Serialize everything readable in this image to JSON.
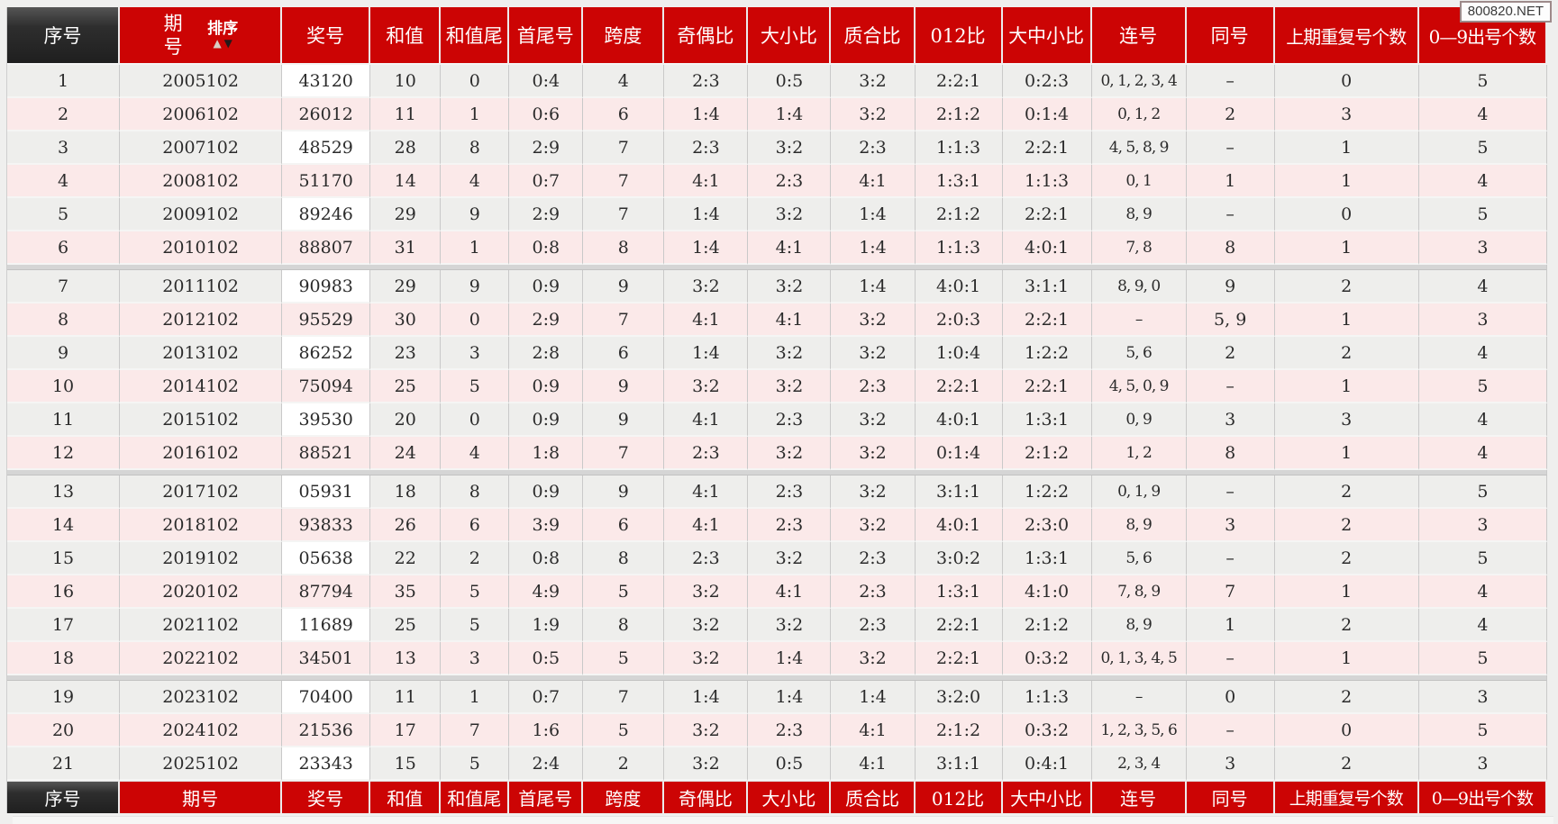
{
  "watermark": "800820.NET",
  "table": {
    "columns": [
      {
        "key": "index",
        "label": "序号"
      },
      {
        "key": "period",
        "label": "期号"
      },
      {
        "key": "number",
        "label": "奖号"
      },
      {
        "key": "sum",
        "label": "和值"
      },
      {
        "key": "sum-tail",
        "label": "和值尾"
      },
      {
        "key": "first-last",
        "label": "首尾号"
      },
      {
        "key": "span",
        "label": "跨度"
      },
      {
        "key": "odd-even",
        "label": "奇偶比"
      },
      {
        "key": "big-small",
        "label": "大小比"
      },
      {
        "key": "prime-composite",
        "label": "质合比"
      },
      {
        "key": "zero-one-two",
        "label": "012比"
      },
      {
        "key": "big-mid-small",
        "label": "大中小比"
      },
      {
        "key": "consecutive",
        "label": "连号"
      },
      {
        "key": "same",
        "label": "同号"
      },
      {
        "key": "repeat-prev",
        "label": "上期重复号个数"
      },
      {
        "key": "digit-count",
        "label": "0—9出号个数"
      }
    ],
    "sort": {
      "label": "排序",
      "up_icon": "▲",
      "down_icon": "▼"
    },
    "group_breaks": [
      6,
      12,
      18
    ],
    "rows": [
      [
        "1",
        "2005102",
        "43120",
        "10",
        "0",
        "0:4",
        "4",
        "2:3",
        "0:5",
        "3:2",
        "2:2:1",
        "0:2:3",
        "0, 1, 2, 3, 4",
        "–",
        "0",
        "5"
      ],
      [
        "2",
        "2006102",
        "26012",
        "11",
        "1",
        "0:6",
        "6",
        "1:4",
        "1:4",
        "3:2",
        "2:1:2",
        "0:1:4",
        "0, 1, 2",
        "2",
        "3",
        "4"
      ],
      [
        "3",
        "2007102",
        "48529",
        "28",
        "8",
        "2:9",
        "7",
        "2:3",
        "3:2",
        "2:3",
        "1:1:3",
        "2:2:1",
        "4, 5, 8, 9",
        "–",
        "1",
        "5"
      ],
      [
        "4",
        "2008102",
        "51170",
        "14",
        "4",
        "0:7",
        "7",
        "4:1",
        "2:3",
        "4:1",
        "1:3:1",
        "1:1:3",
        "0, 1",
        "1",
        "1",
        "4"
      ],
      [
        "5",
        "2009102",
        "89246",
        "29",
        "9",
        "2:9",
        "7",
        "1:4",
        "3:2",
        "1:4",
        "2:1:2",
        "2:2:1",
        "8, 9",
        "–",
        "0",
        "5"
      ],
      [
        "6",
        "2010102",
        "88807",
        "31",
        "1",
        "0:8",
        "8",
        "1:4",
        "4:1",
        "1:4",
        "1:1:3",
        "4:0:1",
        "7, 8",
        "8",
        "1",
        "3"
      ],
      [
        "7",
        "2011102",
        "90983",
        "29",
        "9",
        "0:9",
        "9",
        "3:2",
        "3:2",
        "1:4",
        "4:0:1",
        "3:1:1",
        "8, 9, 0",
        "9",
        "2",
        "4"
      ],
      [
        "8",
        "2012102",
        "95529",
        "30",
        "0",
        "2:9",
        "7",
        "4:1",
        "4:1",
        "3:2",
        "2:0:3",
        "2:2:1",
        "–",
        "5, 9",
        "1",
        "3"
      ],
      [
        "9",
        "2013102",
        "86252",
        "23",
        "3",
        "2:8",
        "6",
        "1:4",
        "3:2",
        "3:2",
        "1:0:4",
        "1:2:2",
        "5, 6",
        "2",
        "2",
        "4"
      ],
      [
        "10",
        "2014102",
        "75094",
        "25",
        "5",
        "0:9",
        "9",
        "3:2",
        "3:2",
        "2:3",
        "2:2:1",
        "2:2:1",
        "4, 5, 0, 9",
        "–",
        "1",
        "5"
      ],
      [
        "11",
        "2015102",
        "39530",
        "20",
        "0",
        "0:9",
        "9",
        "4:1",
        "2:3",
        "3:2",
        "4:0:1",
        "1:3:1",
        "0, 9",
        "3",
        "3",
        "4"
      ],
      [
        "12",
        "2016102",
        "88521",
        "24",
        "4",
        "1:8",
        "7",
        "2:3",
        "3:2",
        "3:2",
        "0:1:4",
        "2:1:2",
        "1, 2",
        "8",
        "1",
        "4"
      ],
      [
        "13",
        "2017102",
        "05931",
        "18",
        "8",
        "0:9",
        "9",
        "4:1",
        "2:3",
        "3:2",
        "3:1:1",
        "1:2:2",
        "0, 1, 9",
        "–",
        "2",
        "5"
      ],
      [
        "14",
        "2018102",
        "93833",
        "26",
        "6",
        "3:9",
        "6",
        "4:1",
        "2:3",
        "3:2",
        "4:0:1",
        "2:3:0",
        "8, 9",
        "3",
        "2",
        "3"
      ],
      [
        "15",
        "2019102",
        "05638",
        "22",
        "2",
        "0:8",
        "8",
        "2:3",
        "3:2",
        "2:3",
        "3:0:2",
        "1:3:1",
        "5, 6",
        "–",
        "2",
        "5"
      ],
      [
        "16",
        "2020102",
        "87794",
        "35",
        "5",
        "4:9",
        "5",
        "3:2",
        "4:1",
        "2:3",
        "1:3:1",
        "4:1:0",
        "7, 8, 9",
        "7",
        "1",
        "4"
      ],
      [
        "17",
        "2021102",
        "11689",
        "25",
        "5",
        "1:9",
        "8",
        "3:2",
        "3:2",
        "2:3",
        "2:2:1",
        "2:1:2",
        "8, 9",
        "1",
        "2",
        "4"
      ],
      [
        "18",
        "2022102",
        "34501",
        "13",
        "3",
        "0:5",
        "5",
        "3:2",
        "1:4",
        "3:2",
        "2:2:1",
        "0:3:2",
        "0, 1, 3, 4, 5",
        "–",
        "1",
        "5"
      ],
      [
        "19",
        "2023102",
        "70400",
        "11",
        "1",
        "0:7",
        "7",
        "1:4",
        "1:4",
        "1:4",
        "3:2:0",
        "1:1:3",
        "–",
        "0",
        "2",
        "3"
      ],
      [
        "20",
        "2024102",
        "21536",
        "17",
        "7",
        "1:6",
        "5",
        "3:2",
        "2:3",
        "4:1",
        "2:1:2",
        "0:3:2",
        "1, 2, 3, 5, 6",
        "–",
        "0",
        "5"
      ],
      [
        "21",
        "2025102",
        "23343",
        "15",
        "5",
        "2:4",
        "2",
        "3:2",
        "0:5",
        "4:1",
        "3:1:1",
        "0:4:1",
        "2, 3, 4",
        "3",
        "2",
        "3"
      ]
    ]
  }
}
